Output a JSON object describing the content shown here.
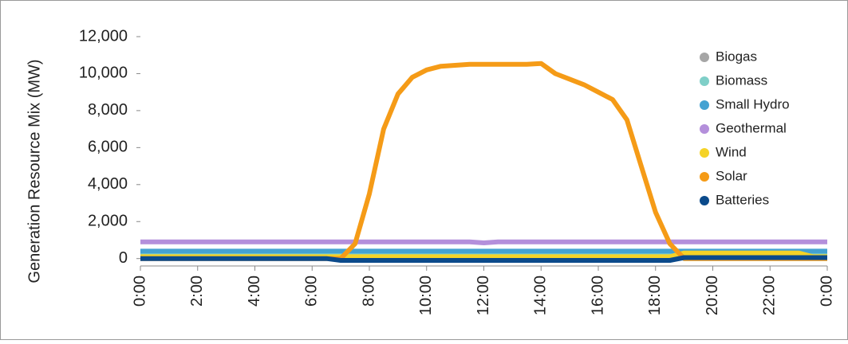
{
  "chart_data": {
    "type": "line",
    "y_label": "Generation Resource Mix (MW)",
    "x": [
      0,
      0.5,
      1,
      1.5,
      2,
      2.5,
      3,
      3.5,
      4,
      4.5,
      5,
      5.5,
      6,
      6.5,
      7,
      7.5,
      8,
      8.5,
      9,
      9.5,
      10,
      10.5,
      11,
      11.5,
      12,
      12.5,
      13,
      13.5,
      14,
      14.5,
      15,
      15.5,
      16,
      16.5,
      17,
      17.5,
      18,
      18.5,
      19,
      19.5,
      20,
      20.5,
      21,
      21.5,
      22,
      22.5,
      23,
      23.5,
      24
    ],
    "xlim": [
      0,
      24
    ],
    "xticks": [
      {
        "value": 0,
        "label": "0:00"
      },
      {
        "value": 2,
        "label": "2:00"
      },
      {
        "value": 4,
        "label": "4:00"
      },
      {
        "value": 6,
        "label": "6:00"
      },
      {
        "value": 8,
        "label": "8:00"
      },
      {
        "value": 10,
        "label": "10:00"
      },
      {
        "value": 12,
        "label": "12:00"
      },
      {
        "value": 14,
        "label": "14:00"
      },
      {
        "value": 16,
        "label": "16:00"
      },
      {
        "value": 18,
        "label": "18:00"
      },
      {
        "value": 20,
        "label": "20:00"
      },
      {
        "value": 22,
        "label": "22:00"
      },
      {
        "value": 24,
        "label": "0:00"
      }
    ],
    "ylim": [
      -400,
      12000
    ],
    "yticks": [
      0,
      {
        "value": 2000,
        "label": "2,000"
      },
      {
        "value": 4000,
        "label": "4,000"
      },
      {
        "value": 6000,
        "label": "6,000"
      },
      {
        "value": 8000,
        "label": "8,000"
      },
      {
        "value": 10000,
        "label": "10,000"
      },
      {
        "value": 12000,
        "label": "12,000"
      }
    ],
    "legend": "upper right",
    "series": [
      {
        "name": "Biogas",
        "color": "#a6a6a6",
        "values": [
          200,
          200,
          200,
          200,
          200,
          200,
          200,
          200,
          200,
          200,
          200,
          200,
          200,
          200,
          200,
          200,
          200,
          200,
          200,
          200,
          200,
          200,
          200,
          200,
          200,
          200,
          200,
          200,
          200,
          200,
          200,
          200,
          200,
          200,
          200,
          200,
          200,
          200,
          200,
          200,
          200,
          200,
          200,
          200,
          200,
          200,
          200,
          200,
          200
        ]
      },
      {
        "name": "Biomass",
        "color": "#7fcfc8",
        "values": [
          300,
          300,
          300,
          300,
          300,
          300,
          300,
          300,
          300,
          300,
          300,
          300,
          300,
          300,
          300,
          300,
          300,
          300,
          300,
          300,
          300,
          300,
          300,
          300,
          300,
          300,
          300,
          300,
          300,
          300,
          300,
          300,
          300,
          300,
          300,
          300,
          300,
          300,
          300,
          300,
          300,
          300,
          300,
          300,
          300,
          300,
          300,
          300,
          300
        ]
      },
      {
        "name": "Small Hydro",
        "color": "#44a2d2",
        "values": [
          400,
          400,
          400,
          400,
          400,
          400,
          400,
          400,
          400,
          400,
          400,
          400,
          400,
          400,
          400,
          400,
          400,
          400,
          400,
          400,
          400,
          400,
          400,
          400,
          400,
          400,
          400,
          400,
          400,
          400,
          400,
          400,
          400,
          400,
          400,
          400,
          400,
          400,
          400,
          400,
          400,
          400,
          400,
          400,
          400,
          400,
          400,
          400,
          400
        ]
      },
      {
        "name": "Geothermal",
        "color": "#b48fdb",
        "values": [
          900,
          900,
          900,
          900,
          900,
          900,
          900,
          900,
          900,
          900,
          900,
          900,
          900,
          900,
          900,
          900,
          900,
          900,
          900,
          900,
          900,
          900,
          900,
          900,
          850,
          900,
          900,
          900,
          900,
          900,
          900,
          900,
          900,
          900,
          900,
          900,
          900,
          900,
          900,
          900,
          900,
          900,
          900,
          900,
          900,
          900,
          900,
          900,
          900
        ]
      },
      {
        "name": "Wind",
        "color": "#f5d327",
        "values": [
          100,
          100,
          100,
          100,
          100,
          100,
          100,
          100,
          100,
          100,
          100,
          100,
          100,
          100,
          100,
          100,
          100,
          100,
          100,
          100,
          100,
          100,
          100,
          100,
          100,
          100,
          100,
          100,
          100,
          100,
          100,
          100,
          100,
          100,
          100,
          100,
          100,
          100,
          300,
          300,
          300,
          300,
          300,
          300,
          300,
          300,
          300,
          100,
          100
        ]
      },
      {
        "name": "Solar",
        "color": "#f59b17",
        "values": [
          0,
          0,
          0,
          0,
          0,
          0,
          0,
          0,
          0,
          0,
          0,
          0,
          0,
          0,
          0,
          800,
          3500,
          7000,
          8900,
          9800,
          10200,
          10400,
          10450,
          10500,
          10500,
          10500,
          10500,
          10500,
          10550,
          10000,
          9700,
          9400,
          9000,
          8600,
          7500,
          5000,
          2500,
          800,
          0,
          0,
          0,
          0,
          0,
          0,
          0,
          0,
          0,
          0,
          0
        ]
      },
      {
        "name": "Batteries",
        "color": "#0b4a8b",
        "values": [
          0,
          0,
          0,
          0,
          0,
          0,
          0,
          0,
          0,
          0,
          0,
          0,
          0,
          0,
          -100,
          -100,
          -100,
          -100,
          -100,
          -100,
          -100,
          -100,
          -100,
          -100,
          -100,
          -100,
          -100,
          -100,
          -100,
          -100,
          -100,
          -100,
          -100,
          -100,
          -100,
          -100,
          -100,
          -100,
          50,
          50,
          50,
          50,
          50,
          50,
          50,
          50,
          50,
          50,
          50
        ]
      }
    ]
  }
}
